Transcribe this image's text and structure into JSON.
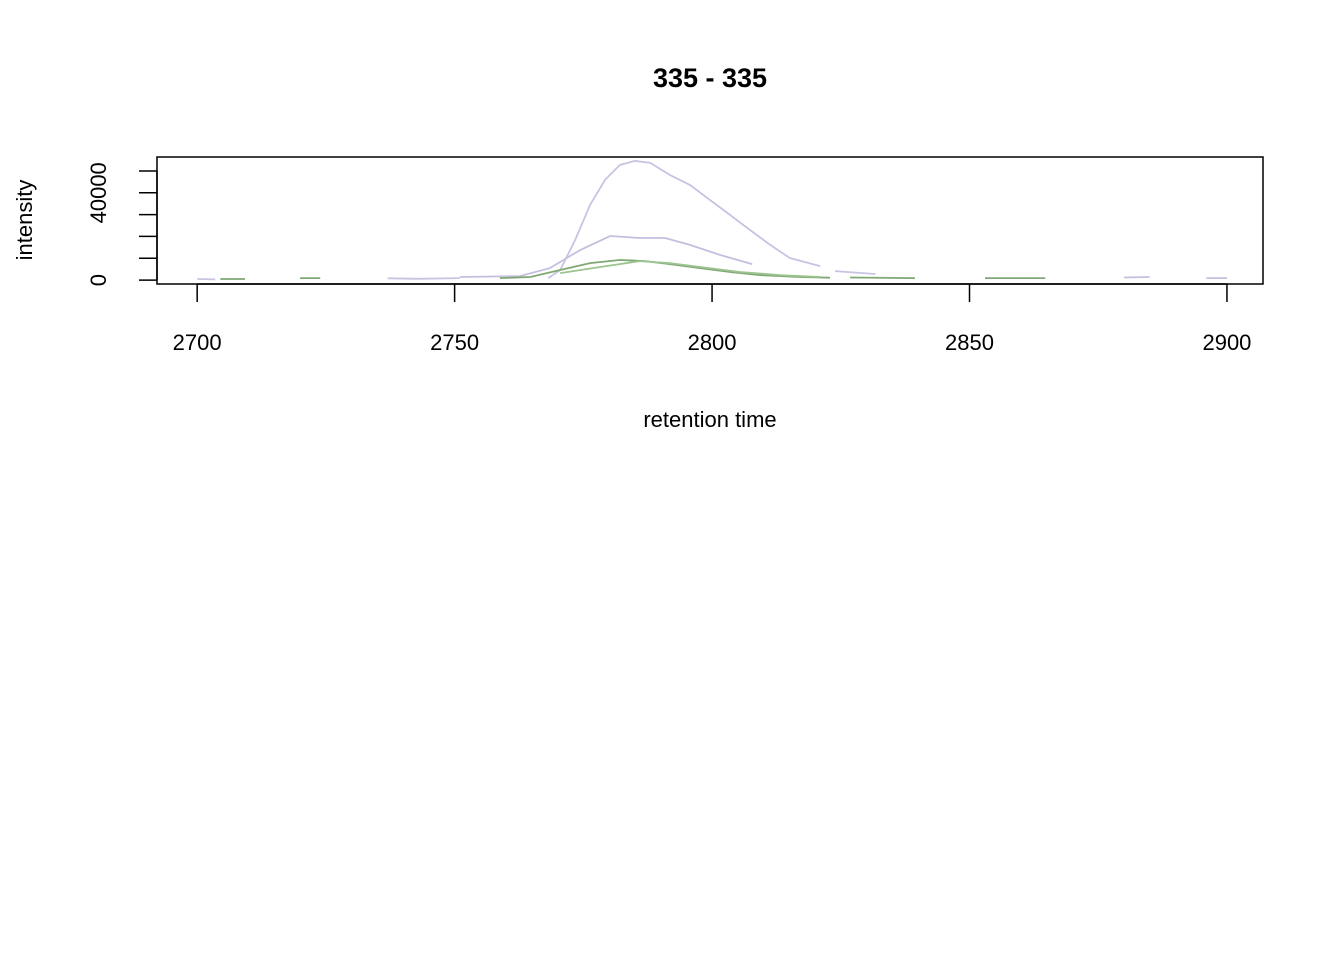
{
  "chart_data": {
    "type": "line",
    "title": "335 - 335",
    "x_label": "retention time",
    "y_label": "intensity",
    "xlim": [
      2692.2,
      2907
    ],
    "ylim": [
      -1800,
      56400
    ],
    "xticks": [
      2700,
      2750,
      2800,
      2850,
      2900
    ],
    "yticks": [
      0,
      {
        "value": 10000,
        "label": null
      },
      {
        "value": 20000,
        "label": null
      },
      {
        "value": 30000,
        "label": null
      },
      40000,
      {
        "value": 50000,
        "label": null
      }
    ],
    "series": [
      {
        "color": "#c9c3e3",
        "x": [
          2700,
          2703.5,
          null,
          2737,
          2743,
          2751,
          null,
          2768.2,
          2770.5,
          2773.4,
          2776.3,
          2779.2,
          2782.1,
          2785,
          2788,
          2791.8,
          2795.7,
          2799.6,
          2803.5,
          2807.4,
          2811.3,
          2815.1,
          2821,
          null,
          2823.9,
          2831.7
        ],
        "values": [
          500,
          300,
          null,
          800,
          600,
          900,
          null,
          900,
          4600,
          18300,
          34400,
          45900,
          52800,
          54600,
          53700,
          48200,
          43600,
          36700,
          29800,
          22900,
          16100,
          10100,
          6400,
          null,
          4100,
          2800
        ]
      },
      {
        "color": "#c4bedf",
        "x": [
          2751,
          2762.7,
          2768.5,
          2774.4,
          2780.2,
          2786,
          2790.9,
          2795.7,
          2801.6,
          2807.8,
          null,
          2880,
          2885,
          null,
          2896,
          2900
        ],
        "values": [
          1400,
          1800,
          5500,
          13800,
          20200,
          19300,
          19300,
          16100,
          11500,
          7300,
          null,
          1200,
          1400,
          null,
          900,
          900
        ]
      },
      {
        "color": "#7fa874",
        "x": [
          2704.5,
          2709.3,
          null,
          2720,
          2723.9,
          null,
          2758.8,
          2764.7,
          2770.5,
          2776.3,
          2782.1,
          2787,
          2791.8,
          2797.7,
          2803.5,
          2809.3,
          2817.1,
          2822.9,
          null,
          2826.8,
          2839.4,
          null,
          2853,
          2864.7
        ],
        "values": [
          500,
          500,
          null,
          900,
          900,
          null,
          900,
          1400,
          4600,
          7800,
          9200,
          8700,
          7300,
          5500,
          3700,
          2300,
          1400,
          1100,
          null,
          1200,
          900,
          null,
          900,
          900
        ]
      },
      {
        "color": "#9cc48f",
        "x": [
          2770.5,
          2778.3,
          2786,
          2791.8,
          2797.7,
          2805.4,
          2813.2,
          2821
        ],
        "values": [
          3200,
          6000,
          8700,
          7800,
          6000,
          3700,
          2300,
          1400
        ]
      }
    ]
  }
}
